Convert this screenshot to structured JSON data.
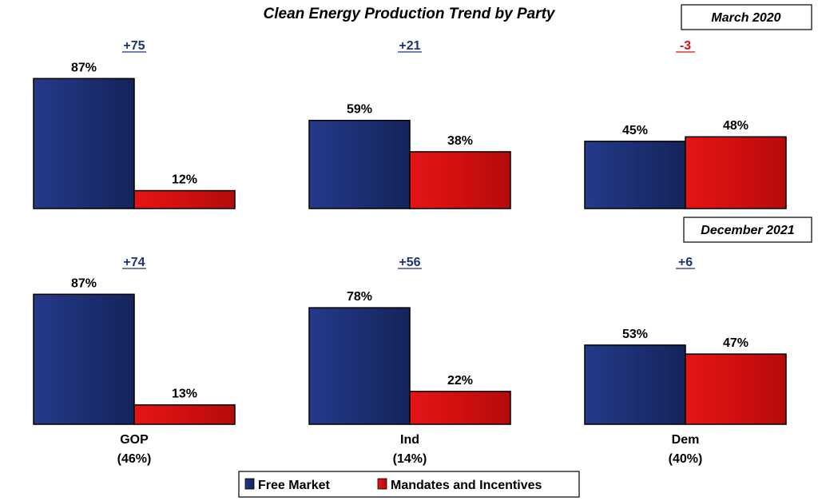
{
  "chart_data": {
    "type": "bar",
    "title": "Clean Energy Production Trend by Party",
    "categories": [
      "GOP",
      "Ind",
      "Dem"
    ],
    "category_shares": [
      "(46%)",
      "(14%)",
      "(40%)"
    ],
    "legend": {
      "position": "bottom",
      "entries": [
        "Free Market",
        "Mandates and Incentives"
      ]
    },
    "colors": {
      "free_market": "#1f3278",
      "mandates": "#dd1111",
      "diff_positive": "#1f3278",
      "diff_negative": "#dd1111"
    },
    "panels": [
      {
        "period": "March 2020",
        "series": [
          {
            "name": "Free Market",
            "values": [
              87,
              59,
              45
            ],
            "labels": [
              "87%",
              "59%",
              "45%"
            ]
          },
          {
            "name": "Mandates and Incentives",
            "values": [
              12,
              38,
              48
            ],
            "labels": [
              "12%",
              "38%",
              "48%"
            ]
          }
        ],
        "differences": [
          "+75",
          "+21",
          "-3"
        ]
      },
      {
        "period": "December 2021",
        "series": [
          {
            "name": "Free Market",
            "values": [
              87,
              78,
              53
            ],
            "labels": [
              "87%",
              "78%",
              "53%"
            ]
          },
          {
            "name": "Mandates and Incentives",
            "values": [
              13,
              22,
              47
            ],
            "labels": [
              "13%",
              "22%",
              "47%"
            ]
          }
        ],
        "differences": [
          "+74",
          "+56",
          "+6"
        ]
      }
    ],
    "ylim": [
      0,
      100
    ],
    "grid": false
  }
}
